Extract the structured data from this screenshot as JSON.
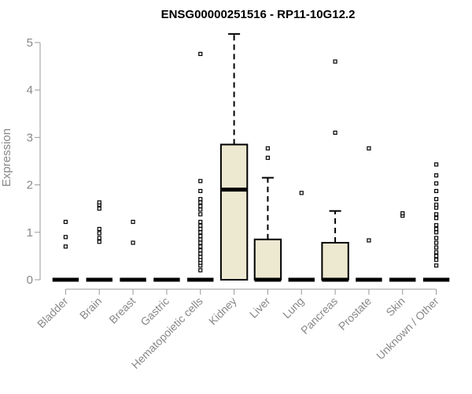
{
  "chart_data": {
    "type": "boxplot",
    "title": "ENSG00000251516 - RP11-10G12.2",
    "xlabel": "",
    "ylabel": "Expression",
    "ylim": [
      0,
      5.2
    ],
    "yticks": [
      0,
      1,
      2,
      3,
      4,
      5
    ],
    "box_fill": "#ede8d0",
    "categories": [
      "Bladder",
      "Brain",
      "Breast",
      "Gastric",
      "Hematopoietic cells",
      "Kidney",
      "Liver",
      "Lung",
      "Pancreas",
      "Prostate",
      "Skin",
      "Unknown / Other"
    ],
    "boxes": [
      {
        "q1": 0,
        "median": 0,
        "q3": 0,
        "whisker_low": 0,
        "whisker_high": 0,
        "outliers": [
          0.7,
          0.9,
          1.22
        ]
      },
      {
        "q1": 0,
        "median": 0,
        "q3": 0,
        "whisker_low": 0,
        "whisker_high": 0,
        "outliers": [
          0.8,
          0.88,
          0.98,
          1.07,
          1.5,
          1.58,
          1.63
        ]
      },
      {
        "q1": 0,
        "median": 0,
        "q3": 0,
        "whisker_low": 0,
        "whisker_high": 0,
        "outliers": [
          0.78,
          1.22
        ]
      },
      {
        "q1": 0,
        "median": 0,
        "q3": 0,
        "whisker_low": 0,
        "whisker_high": 0,
        "outliers": []
      },
      {
        "q1": 0,
        "median": 0,
        "q3": 0,
        "whisker_low": 0,
        "whisker_high": 0,
        "outliers": [
          0.2,
          0.3,
          0.36,
          0.42,
          0.48,
          0.55,
          0.62,
          0.7,
          0.78,
          0.85,
          0.92,
          1.0,
          1.07,
          1.14,
          1.22,
          1.38,
          1.48,
          1.55,
          1.63,
          1.7,
          1.87,
          2.08,
          4.76
        ]
      },
      {
        "q1": 0,
        "median": 1.9,
        "q3": 2.85,
        "whisker_low": 0,
        "whisker_high": 5.18,
        "outliers": []
      },
      {
        "q1": 0,
        "median": 0,
        "q3": 0.85,
        "whisker_low": 0,
        "whisker_high": 2.15,
        "outliers": [
          2.57,
          2.77
        ]
      },
      {
        "q1": 0,
        "median": 0,
        "q3": 0,
        "whisker_low": 0,
        "whisker_high": 0,
        "outliers": [
          1.83
        ]
      },
      {
        "q1": 0,
        "median": 0,
        "q3": 0.78,
        "whisker_low": 0,
        "whisker_high": 1.45,
        "outliers": [
          3.1,
          4.6
        ]
      },
      {
        "q1": 0,
        "median": 0,
        "q3": 0,
        "whisker_low": 0,
        "whisker_high": 0,
        "outliers": [
          0.83,
          2.77
        ]
      },
      {
        "q1": 0,
        "median": 0,
        "q3": 0,
        "whisker_low": 0,
        "whisker_high": 0,
        "outliers": [
          1.35,
          1.4
        ]
      },
      {
        "q1": 0,
        "median": 0,
        "q3": 0,
        "whisker_low": 0,
        "whisker_high": 0,
        "outliers": [
          0.3,
          0.42,
          0.5,
          0.58,
          0.68,
          0.78,
          0.88,
          1.0,
          1.07,
          1.15,
          1.3,
          1.38,
          1.52,
          1.58,
          1.7,
          1.87,
          2.03,
          2.2,
          2.43
        ]
      }
    ]
  }
}
